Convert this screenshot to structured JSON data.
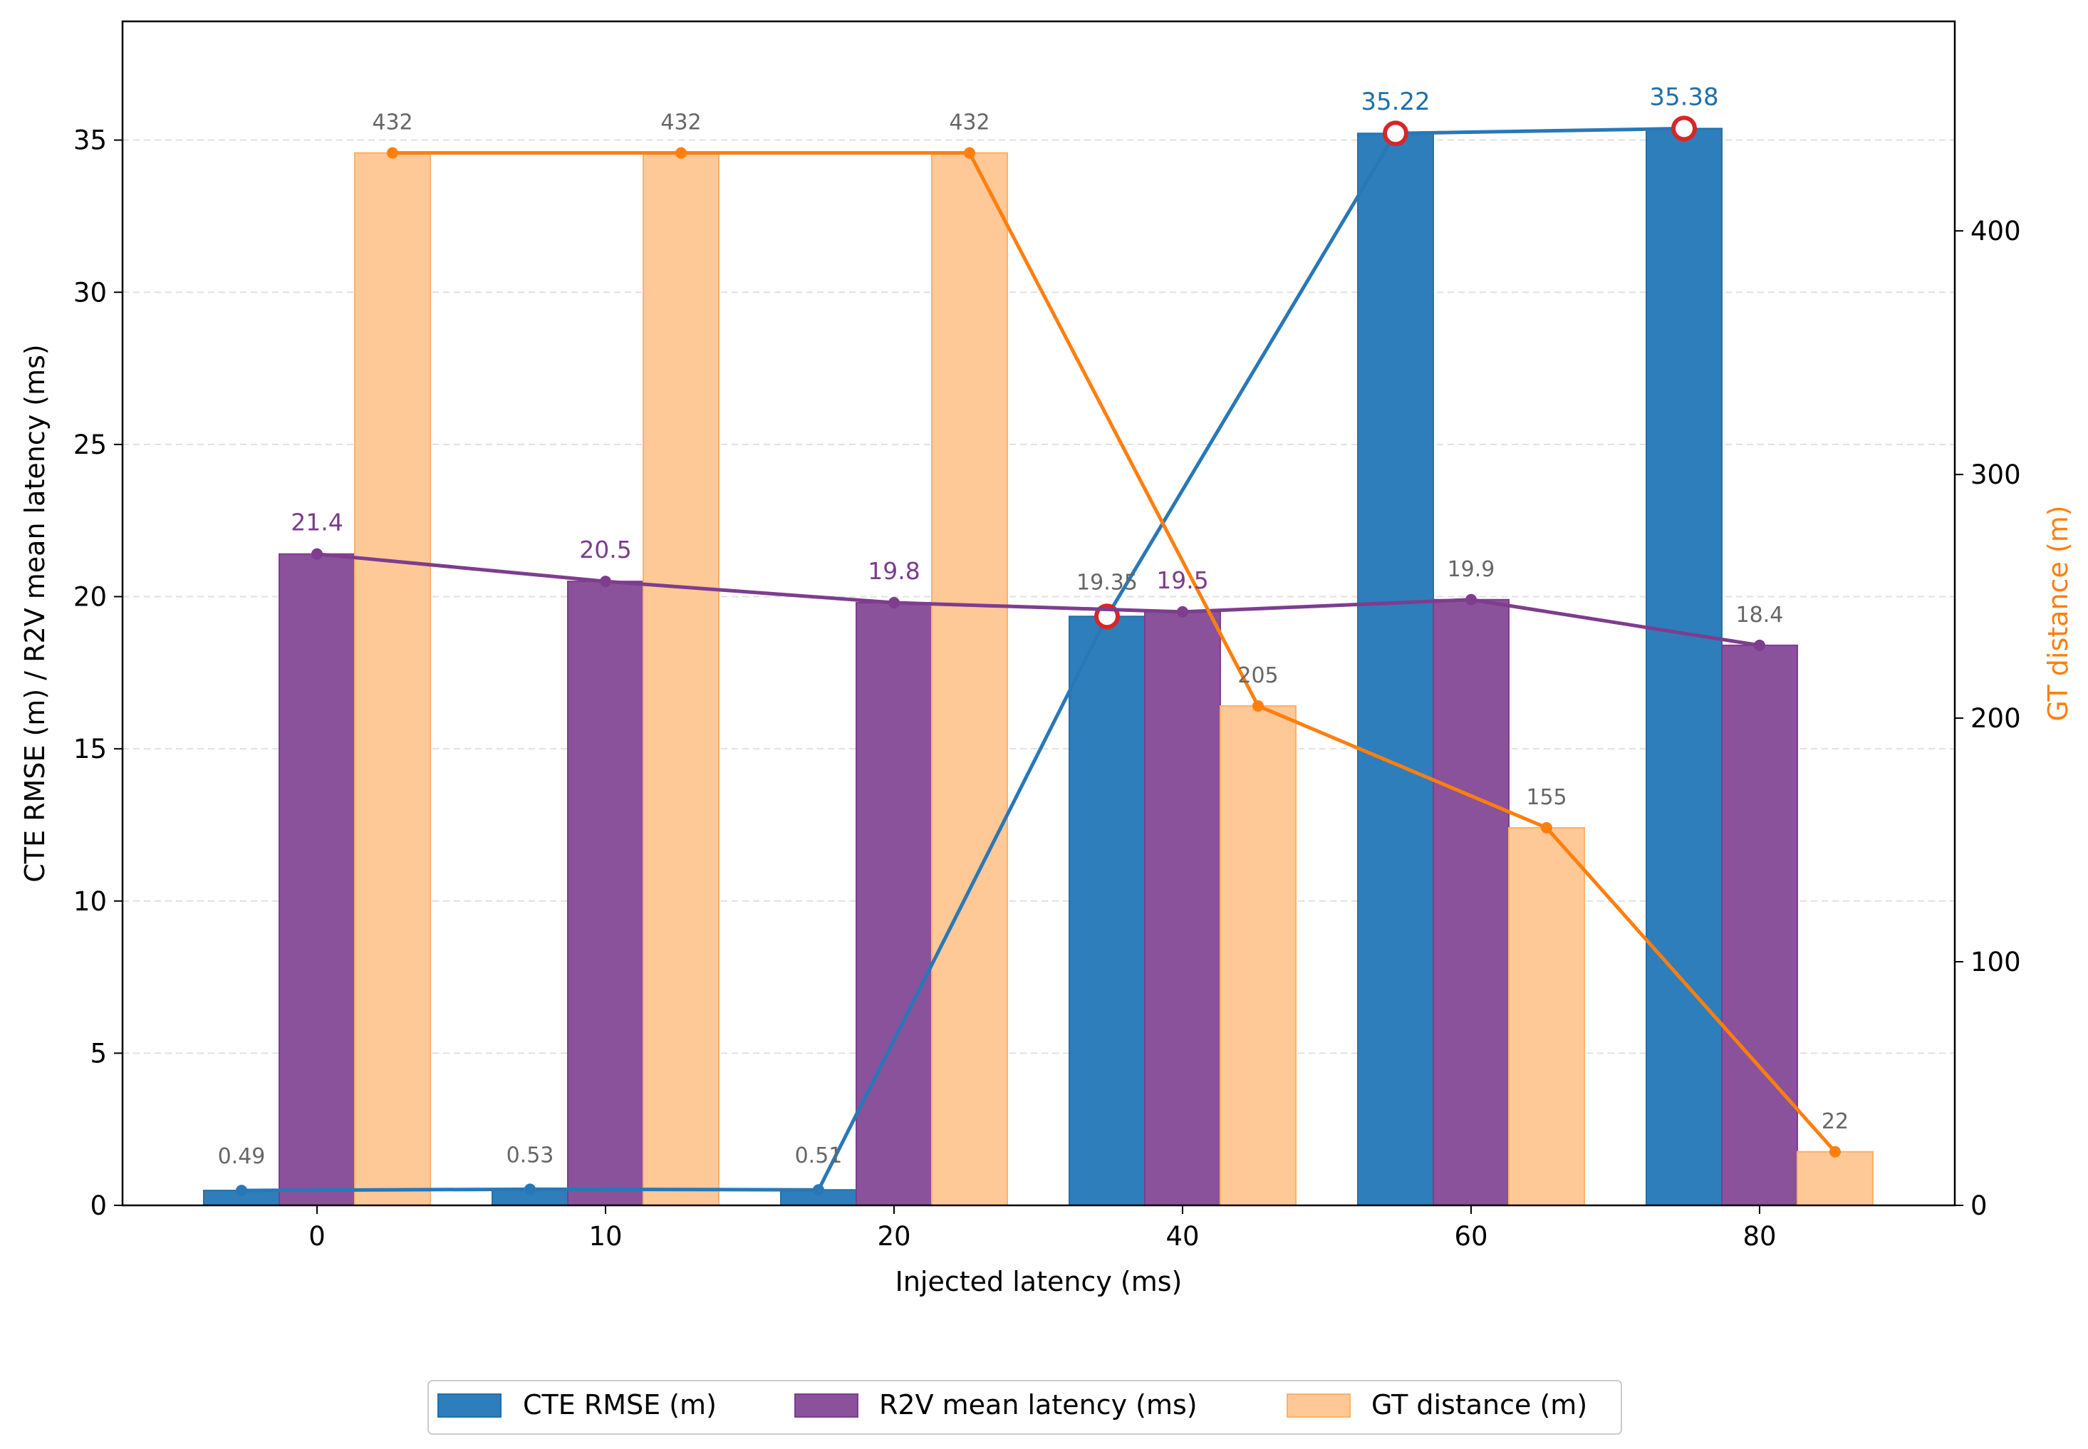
{
  "chart_data": {
    "type": "bar",
    "x_label": "Injected latency (ms)",
    "y_label_left": "CTE RMSE (m) / R2V mean latency (ms)",
    "y_label_right": "GT distance (m)",
    "categories": [
      "0",
      "10",
      "20",
      "40",
      "60",
      "80"
    ],
    "ylim_left": [
      0,
      38.9
    ],
    "ylim_right": [
      0,
      486
    ],
    "yticks_left": [
      0,
      5,
      10,
      15,
      20,
      25,
      30,
      35
    ],
    "yticks_right": [
      0,
      100,
      200,
      300,
      400
    ],
    "grid": "horizontal dashed",
    "legend_position": "bottom-center",
    "series": [
      {
        "name": "CTE RMSE (m)",
        "axis": "left",
        "color": "#2e7ebc",
        "line_color": "#2878b8",
        "label_color": "#666666",
        "values": [
          0.49,
          0.53,
          0.51,
          19.35,
          35.22,
          35.38
        ],
        "labels": [
          "0.49",
          "0.53",
          "0.51",
          "19.35",
          "35.22",
          "35.38"
        ],
        "highlight_color": "#1f6fab"
      },
      {
        "name": "R2V mean latency (ms)",
        "axis": "left",
        "color": "#8a529b",
        "line_color": "#7e3d8e",
        "label_color": "#7d3c8c",
        "values": [
          21.4,
          20.5,
          19.8,
          19.5,
          19.9,
          18.4
        ],
        "labels": [
          "21.4",
          "20.5",
          "19.8",
          "19.5",
          "19.9",
          "18.4"
        ]
      },
      {
        "name": "GT distance (m)",
        "axis": "right",
        "color": "#ffc897",
        "line_color": "#ff7f0e",
        "label_color": "#666666",
        "values": [
          432,
          432,
          432,
          205,
          155,
          22
        ],
        "labels": [
          "432",
          "432",
          "432",
          "205",
          "155",
          "22"
        ]
      }
    ],
    "marker_color": "#d62728",
    "axis_right_color": "#ff7f0e"
  }
}
